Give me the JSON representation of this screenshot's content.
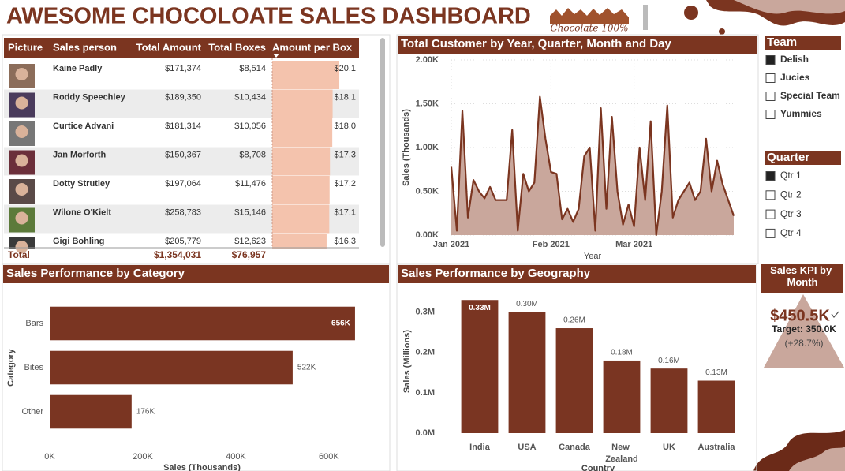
{
  "header": {
    "title": "AWESOME CHOCOLOATE SALES DASHBOARD",
    "logo": "Chocolate 100%"
  },
  "table": {
    "columns": [
      "Picture",
      "Sales person",
      "Total Amount",
      "Total Boxes",
      "Amount per Box"
    ],
    "rows": [
      [
        "Kaine Padly",
        "$171,374",
        "$8,514",
        "$20.1"
      ],
      [
        "Roddy Speechley",
        "$189,350",
        "$10,434",
        "$18.1"
      ],
      [
        "Curtice Advani",
        "$181,314",
        "$10,056",
        "$18.0"
      ],
      [
        "Jan Morforth",
        "$150,367",
        "$8,708",
        "$17.3"
      ],
      [
        "Dotty Strutley",
        "$197,064",
        "$11,476",
        "$17.2"
      ],
      [
        "Wilone O'Kielt",
        "$258,783",
        "$15,146",
        "$17.1"
      ],
      [
        "Gigi Bohling",
        "$205,779",
        "$12,623",
        "$16.3"
      ]
    ],
    "total": [
      "Total",
      "$1,354,031",
      "$76,957"
    ]
  },
  "slicers": [
    {
      "title": "Team",
      "items": [
        "Delish",
        "Jucies",
        "Special Team",
        "Yummies"
      ],
      "checked": [
        true,
        false,
        false,
        false
      ]
    },
    {
      "title": "Quarter",
      "items": [
        "Qtr 1",
        "Qtr 2",
        "Qtr 3",
        "Qtr 4"
      ],
      "checked": [
        true,
        false,
        false,
        false
      ]
    }
  ],
  "kpi": {
    "title": "Sales KPI by Month",
    "value": "$450.5K",
    "target": "Target: 350.0K",
    "change": "(+28.7%)"
  },
  "chart_data": [
    {
      "type": "line",
      "title": "Total Customer by Year, Quarter, Month and Day",
      "x_label": "Year",
      "y_label": "Sales (Thousands)",
      "color": "#7b3520",
      "fill": "#c9a79c",
      "categories": [
        "Jan 2021",
        null,
        null,
        null,
        null,
        null,
        null,
        null,
        null,
        null,
        null,
        null,
        null,
        null,
        null,
        null,
        null,
        null,
        "Feb 2021",
        null,
        null,
        null,
        null,
        null,
        null,
        null,
        null,
        null,
        null,
        null,
        null,
        null,
        null,
        "Mar 2021",
        null,
        null,
        null,
        null,
        null,
        null,
        null,
        null,
        null,
        null,
        null,
        null,
        null,
        null,
        null,
        null,
        null,
        null
      ],
      "values": [
        780,
        50,
        1420,
        200,
        630,
        500,
        420,
        550,
        400,
        400,
        400,
        1200,
        50,
        700,
        500,
        600,
        1580,
        1100,
        720,
        700,
        180,
        300,
        150,
        300,
        900,
        1000,
        50,
        1450,
        300,
        1350,
        500,
        120,
        350,
        100,
        1000,
        400,
        1300,
        0,
        500,
        1480,
        200,
        400,
        500,
        600,
        400,
        500,
        1100,
        500,
        850,
        580,
        400,
        220
      ],
      "ylim": [
        0,
        2000
      ],
      "yticks": [
        {
          "value": 0,
          "label": "0.00K"
        },
        {
          "value": 500,
          "label": "0.50K"
        },
        {
          "value": 1000,
          "label": "1.00K"
        },
        {
          "value": 1500,
          "label": "1.50K"
        },
        {
          "value": 2000,
          "label": "2.00K"
        }
      ],
      "grid": true
    },
    {
      "type": "bar",
      "horizontal": true,
      "title": "Sales Performance by Category",
      "x_label": "Sales (Thousands)",
      "y_label": "Category",
      "color": "#7a3522",
      "categories": [
        "Bars",
        "Bites",
        "Other"
      ],
      "values": [
        656000,
        522000,
        176000
      ],
      "value_labels": [
        "656K",
        "522K",
        "176K"
      ],
      "xlim": [
        0,
        690000
      ],
      "xticks": [
        {
          "value": 0,
          "label": "0K"
        },
        {
          "value": 200000,
          "label": "200K"
        },
        {
          "value": 400000,
          "label": "400K"
        },
        {
          "value": 600000,
          "label": "600K"
        }
      ]
    },
    {
      "type": "bar",
      "horizontal": false,
      "title": "Sales Performance by Geography",
      "x_label": "Country",
      "y_label": "Sales (Millions)",
      "color": "#7a3522",
      "categories": [
        "India",
        "USA",
        "Canada",
        "New Zealand",
        "UK",
        "Australia"
      ],
      "values": [
        330000,
        300000,
        260000,
        180000,
        160000,
        130000
      ],
      "value_labels": [
        "0.33M",
        "0.30M",
        "0.26M",
        "0.18M",
        "0.16M",
        "0.13M"
      ],
      "ylim": [
        0,
        350000
      ],
      "yticks": [
        {
          "value": 0,
          "label": "0.0M"
        },
        {
          "value": 100000,
          "label": "0.1M"
        },
        {
          "value": 200000,
          "label": "0.2M"
        },
        {
          "value": 300000,
          "label": "0.3M"
        }
      ]
    }
  ]
}
